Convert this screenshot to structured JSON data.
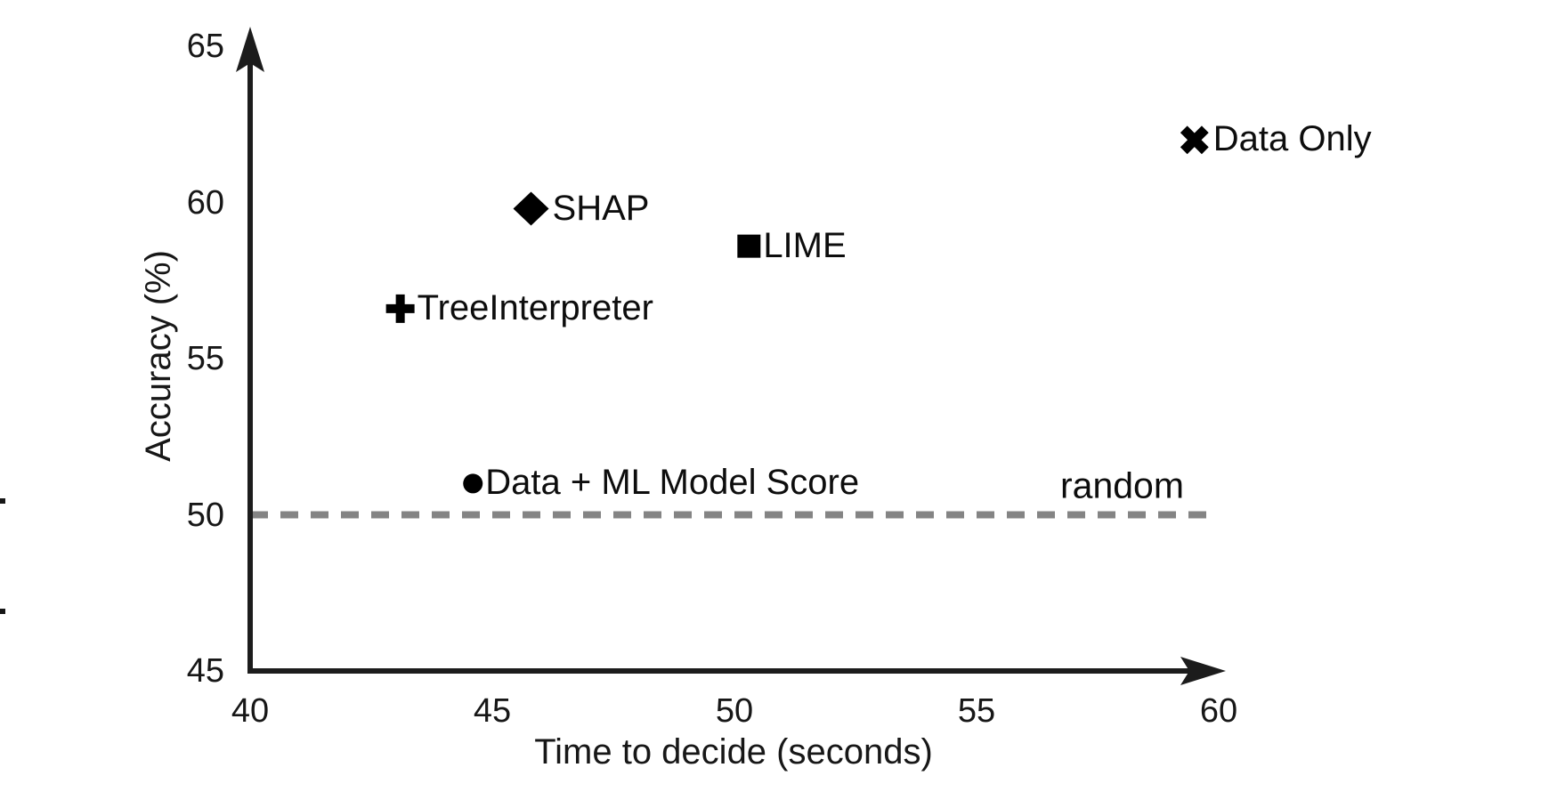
{
  "figure": {
    "background": "#ffffff",
    "axis_color": "#1c1c1c",
    "text_color": "#171717",
    "marker_color": "#000000"
  },
  "chart_data": {
    "type": "scatter",
    "title": "",
    "xlabel": "Time to decide (seconds)",
    "ylabel": "Accuracy (%)",
    "xlim": [
      40,
      60
    ],
    "ylim": [
      45,
      65
    ],
    "xticks": [
      "40",
      "45",
      "50",
      "55",
      "60"
    ],
    "yticks": [
      "45",
      "50",
      "55",
      "60",
      "65"
    ],
    "xtick_values": [
      40,
      45,
      50,
      55,
      60
    ],
    "ytick_values": [
      45,
      50,
      55,
      60,
      65
    ],
    "grid": false,
    "legend_position": "none",
    "points": [
      {
        "label": "SHAP",
        "x": 45.8,
        "y": 59.8,
        "marker": "diamond"
      },
      {
        "label": "LIME",
        "x": 50.3,
        "y": 58.6,
        "marker": "square"
      },
      {
        "label": "TreeInterpreter",
        "x": 43.1,
        "y": 56.6,
        "marker": "plus"
      },
      {
        "label": "Data + ML Model Score",
        "x": 44.6,
        "y": 51.0,
        "marker": "circle"
      },
      {
        "label": "Data Only",
        "x": 59.5,
        "y": 62.0,
        "marker": "x"
      }
    ],
    "reference_line": {
      "label": "random",
      "y": 50,
      "style": "dashed",
      "color": "#848484"
    }
  }
}
